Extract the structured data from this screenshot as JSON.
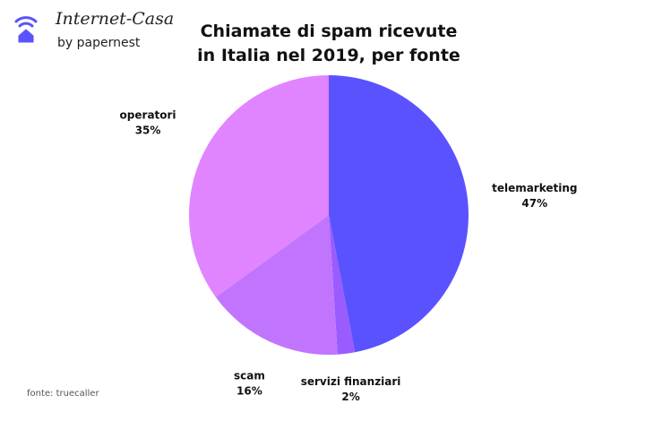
{
  "logo": {
    "name": "Internet-Casa",
    "subtitle": "by papernest"
  },
  "chart_data": {
    "type": "pie",
    "title": "Chiamate di spam ricevute in Italia nel 2019, per fonte",
    "categories": [
      "telemarketing",
      "servizi finanziari",
      "scam",
      "operatori"
    ],
    "values": [
      47,
      2,
      16,
      35
    ],
    "value_labels": [
      "47%",
      "2%",
      "16%",
      "35%"
    ],
    "colors": [
      "#5b52ff",
      "#9a5cff",
      "#c175ff",
      "#e085ff"
    ],
    "source": "fonte: truecaller"
  }
}
